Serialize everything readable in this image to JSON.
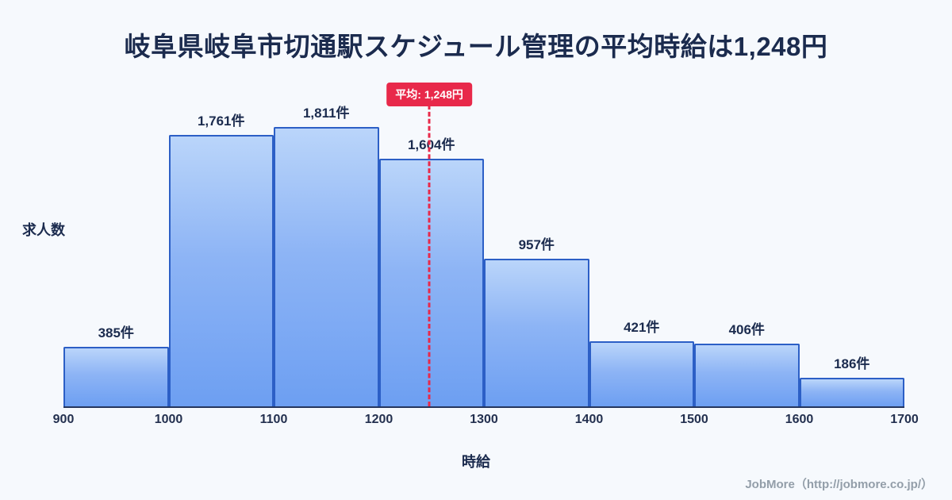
{
  "page": {
    "footer_credit": "JobMore（http://jobmore.co.jp/）"
  },
  "chart_data": {
    "type": "bar",
    "title": "岐阜県岐阜市切通駅スケジュール管理の平均時給は1,248円",
    "xlabel": "時給",
    "ylabel": "求人数",
    "x_range": [
      900,
      1700
    ],
    "x_ticks": [
      "900",
      "1000",
      "1100",
      "1200",
      "1300",
      "1400",
      "1500",
      "1600",
      "1700"
    ],
    "categories": [
      "900-1000",
      "1000-1100",
      "1100-1200",
      "1200-1300",
      "1300-1400",
      "1400-1500",
      "1500-1600",
      "1600-1700"
    ],
    "values": [
      385,
      1761,
      1811,
      1604,
      957,
      421,
      406,
      186
    ],
    "value_labels": [
      "385件",
      "1,761件",
      "1,811件",
      "1,604件",
      "957件",
      "421件",
      "406件",
      "186件"
    ],
    "ylim": [
      0,
      1811
    ],
    "grid": "off",
    "average": {
      "value": 1248,
      "label": "平均: 1,248円"
    },
    "colors": {
      "background": "#f6f9fd",
      "bar_fill_top": "#bad5fa",
      "bar_fill_bottom": "#6d9ff2",
      "bar_border": "#2c5fc6",
      "average_accent": "#e8294a",
      "text_dark": "#1b2b4e",
      "footer_gray": "#939ea9"
    }
  }
}
